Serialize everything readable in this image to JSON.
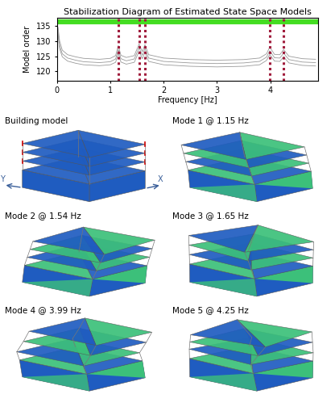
{
  "chart_data": {
    "type": "line",
    "title": "Stabilization Diagram of Estimated State Space Models",
    "x_label": "Frequency [Hz]",
    "y_label": "Model order",
    "xlim": [
      0,
      4.9
    ],
    "ylim": [
      117,
      137.5
    ],
    "xticks": [
      0,
      1,
      2,
      3,
      4
    ],
    "yticks": [
      120,
      125,
      130,
      135
    ],
    "series": [
      {
        "type": "line",
        "color": "#9a9a9a",
        "x": [
          0.02,
          0.05,
          0.1,
          0.2,
          0.35,
          0.5,
          0.8,
          1.0,
          1.1,
          1.15,
          1.2,
          1.3,
          1.45,
          1.54,
          1.6,
          1.65,
          1.72,
          2.0,
          2.5,
          3.0,
          3.5,
          3.8,
          3.93,
          3.99,
          4.08,
          4.18,
          4.25,
          4.35,
          4.6,
          4.85
        ],
        "values": [
          134.5,
          130,
          127,
          125.5,
          124.8,
          124.3,
          124,
          124.3,
          125.2,
          128.5,
          125.3,
          124.6,
          125.2,
          129,
          126.5,
          128.8,
          125.5,
          124.4,
          123.9,
          123.7,
          123.9,
          124.4,
          125.8,
          128,
          125.6,
          125.5,
          127.2,
          125,
          124.2,
          124
        ]
      },
      {
        "type": "line",
        "color": "#9a9a9a",
        "x": [
          0.02,
          0.05,
          0.1,
          0.2,
          0.35,
          0.5,
          0.8,
          1.0,
          1.1,
          1.15,
          1.2,
          1.3,
          1.45,
          1.54,
          1.6,
          1.65,
          1.72,
          2.0,
          2.5,
          3.0,
          3.5,
          3.8,
          3.93,
          3.99,
          4.08,
          4.18,
          4.25,
          4.35,
          4.6,
          4.85
        ],
        "values": [
          133,
          128.5,
          125.8,
          124.4,
          123.7,
          123.2,
          122.9,
          123.2,
          124.1,
          127.2,
          124.2,
          123.5,
          124.1,
          127.8,
          125.3,
          127.5,
          124.4,
          123.3,
          122.8,
          122.6,
          122.8,
          123.3,
          124.7,
          126.8,
          124.5,
          124.4,
          126,
          123.9,
          123.1,
          122.9
        ]
      },
      {
        "type": "line",
        "color": "#9a9a9a",
        "x": [
          0.02,
          0.05,
          0.1,
          0.2,
          0.35,
          0.5,
          0.8,
          1.0,
          1.1,
          1.15,
          1.2,
          1.3,
          1.45,
          1.54,
          1.6,
          1.65,
          1.72,
          2.0,
          2.5,
          3.0,
          3.5,
          3.8,
          3.93,
          3.99,
          4.08,
          4.18,
          4.25,
          4.35,
          4.6,
          4.85
        ],
        "values": [
          132,
          127.5,
          124.8,
          123.4,
          122.7,
          122.2,
          121.9,
          122.2,
          123,
          126,
          123.1,
          122.4,
          123,
          126.6,
          124.2,
          126.3,
          123.3,
          122.2,
          121.7,
          121.5,
          121.7,
          122.2,
          123.6,
          125.6,
          123.4,
          123.3,
          124.8,
          122.8,
          122,
          121.8
        ]
      },
      {
        "type": "hline",
        "color": "#44dd22",
        "values": [
          136.3
        ]
      },
      {
        "type": "vline",
        "color": "#a01c3c",
        "line_style": "dotted",
        "x": [
          1.15,
          1.54,
          1.65,
          3.99,
          4.25
        ]
      }
    ]
  },
  "panels": [
    {
      "title": "Building model",
      "axis_labels": [
        "Y",
        "X"
      ]
    },
    {
      "title": "Mode 1 @ 1.15 Hz"
    },
    {
      "title": "Mode 2 @ 1.54 Hz"
    },
    {
      "title": "Mode 3 @ 1.65 Hz"
    },
    {
      "title": "Mode 4 @ 3.99 Hz"
    },
    {
      "title": "Mode 5 @ 4.25 Hz"
    }
  ]
}
